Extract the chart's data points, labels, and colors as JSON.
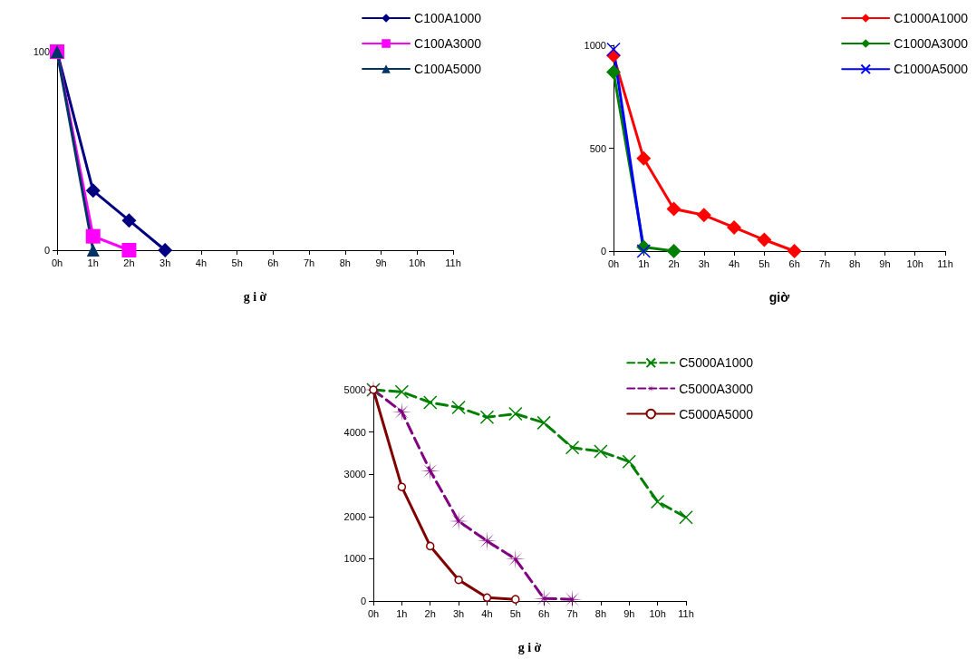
{
  "chart_data": [
    {
      "type": "line",
      "xlabel": "g i ờ",
      "categories": [
        "0h",
        "1h",
        "2h",
        "3h",
        "4h",
        "5h",
        "6h",
        "7h",
        "8h",
        "9h",
        "10h",
        "11h"
      ],
      "ylim": [
        0,
        100
      ],
      "yticks": [
        0,
        100
      ],
      "legend": "top right",
      "grid": false,
      "line_style": "solid",
      "series": [
        {
          "name": "C100A1000",
          "color": "#000080",
          "marker": "diamond",
          "values": [
            100,
            30,
            15,
            0,
            null,
            null,
            null,
            null,
            null,
            null,
            null,
            null
          ]
        },
        {
          "name": "C100A3000",
          "color": "#ff00ff",
          "marker": "square",
          "values": [
            100,
            7,
            0,
            null,
            null,
            null,
            null,
            null,
            null,
            null,
            null,
            null
          ]
        },
        {
          "name": "C100A5000",
          "color": "#003366",
          "marker": "triangle",
          "values": [
            100,
            0,
            null,
            null,
            null,
            null,
            null,
            null,
            null,
            null,
            null,
            null
          ]
        }
      ]
    },
    {
      "type": "line",
      "xlabel": "giờ",
      "categories": [
        "0h",
        "1h",
        "2h",
        "3h",
        "4h",
        "5h",
        "6h",
        "7h",
        "8h",
        "9h",
        "10h",
        "11h"
      ],
      "ylim": [
        0,
        1000
      ],
      "yticks": [
        0,
        500,
        1000
      ],
      "legend": "top right",
      "grid": false,
      "line_style": "solid",
      "series": [
        {
          "name": "C1000A1000",
          "color": "#ff0000",
          "marker": "diamond",
          "values": [
            950,
            450,
            205,
            175,
            115,
            55,
            0,
            null,
            null,
            null,
            null,
            null
          ]
        },
        {
          "name": "C1000A3000",
          "color": "#008000",
          "marker": "diamond",
          "values": [
            870,
            20,
            0,
            null,
            null,
            null,
            null,
            null,
            null,
            null,
            null,
            null
          ]
        },
        {
          "name": "C1000A5000",
          "color": "#0000ff",
          "marker": "cross",
          "values": [
            980,
            0,
            null,
            null,
            null,
            null,
            null,
            null,
            null,
            null,
            null,
            null
          ]
        }
      ]
    },
    {
      "type": "line",
      "xlabel": "g i ờ",
      "categories": [
        "0h",
        "1h",
        "2h",
        "3h",
        "4h",
        "5h",
        "6h",
        "7h",
        "8h",
        "9h",
        "10h",
        "11h"
      ],
      "ylim": [
        0,
        5000
      ],
      "yticks": [
        0,
        1000,
        2000,
        3000,
        4000,
        5000
      ],
      "legend": "top right",
      "grid": false,
      "series": [
        {
          "name": "C5000A1000",
          "color": "#008000",
          "marker": "cross",
          "line_style": "dashed",
          "values": [
            5000,
            4950,
            4700,
            4580,
            4350,
            4430,
            4220,
            3630,
            3540,
            3300,
            2350,
            1980
          ]
        },
        {
          "name": "C5000A3000",
          "color": "#800080",
          "marker": "star",
          "line_style": "dashed",
          "values": [
            5000,
            4480,
            3080,
            1890,
            1420,
            990,
            60,
            40,
            null,
            null,
            null,
            null
          ]
        },
        {
          "name": "C5000A5000",
          "color": "#800000",
          "marker": "circle",
          "line_style": "solid",
          "values": [
            5000,
            2700,
            1300,
            500,
            80,
            40,
            null,
            null,
            null,
            null,
            null,
            null
          ]
        }
      ]
    }
  ]
}
